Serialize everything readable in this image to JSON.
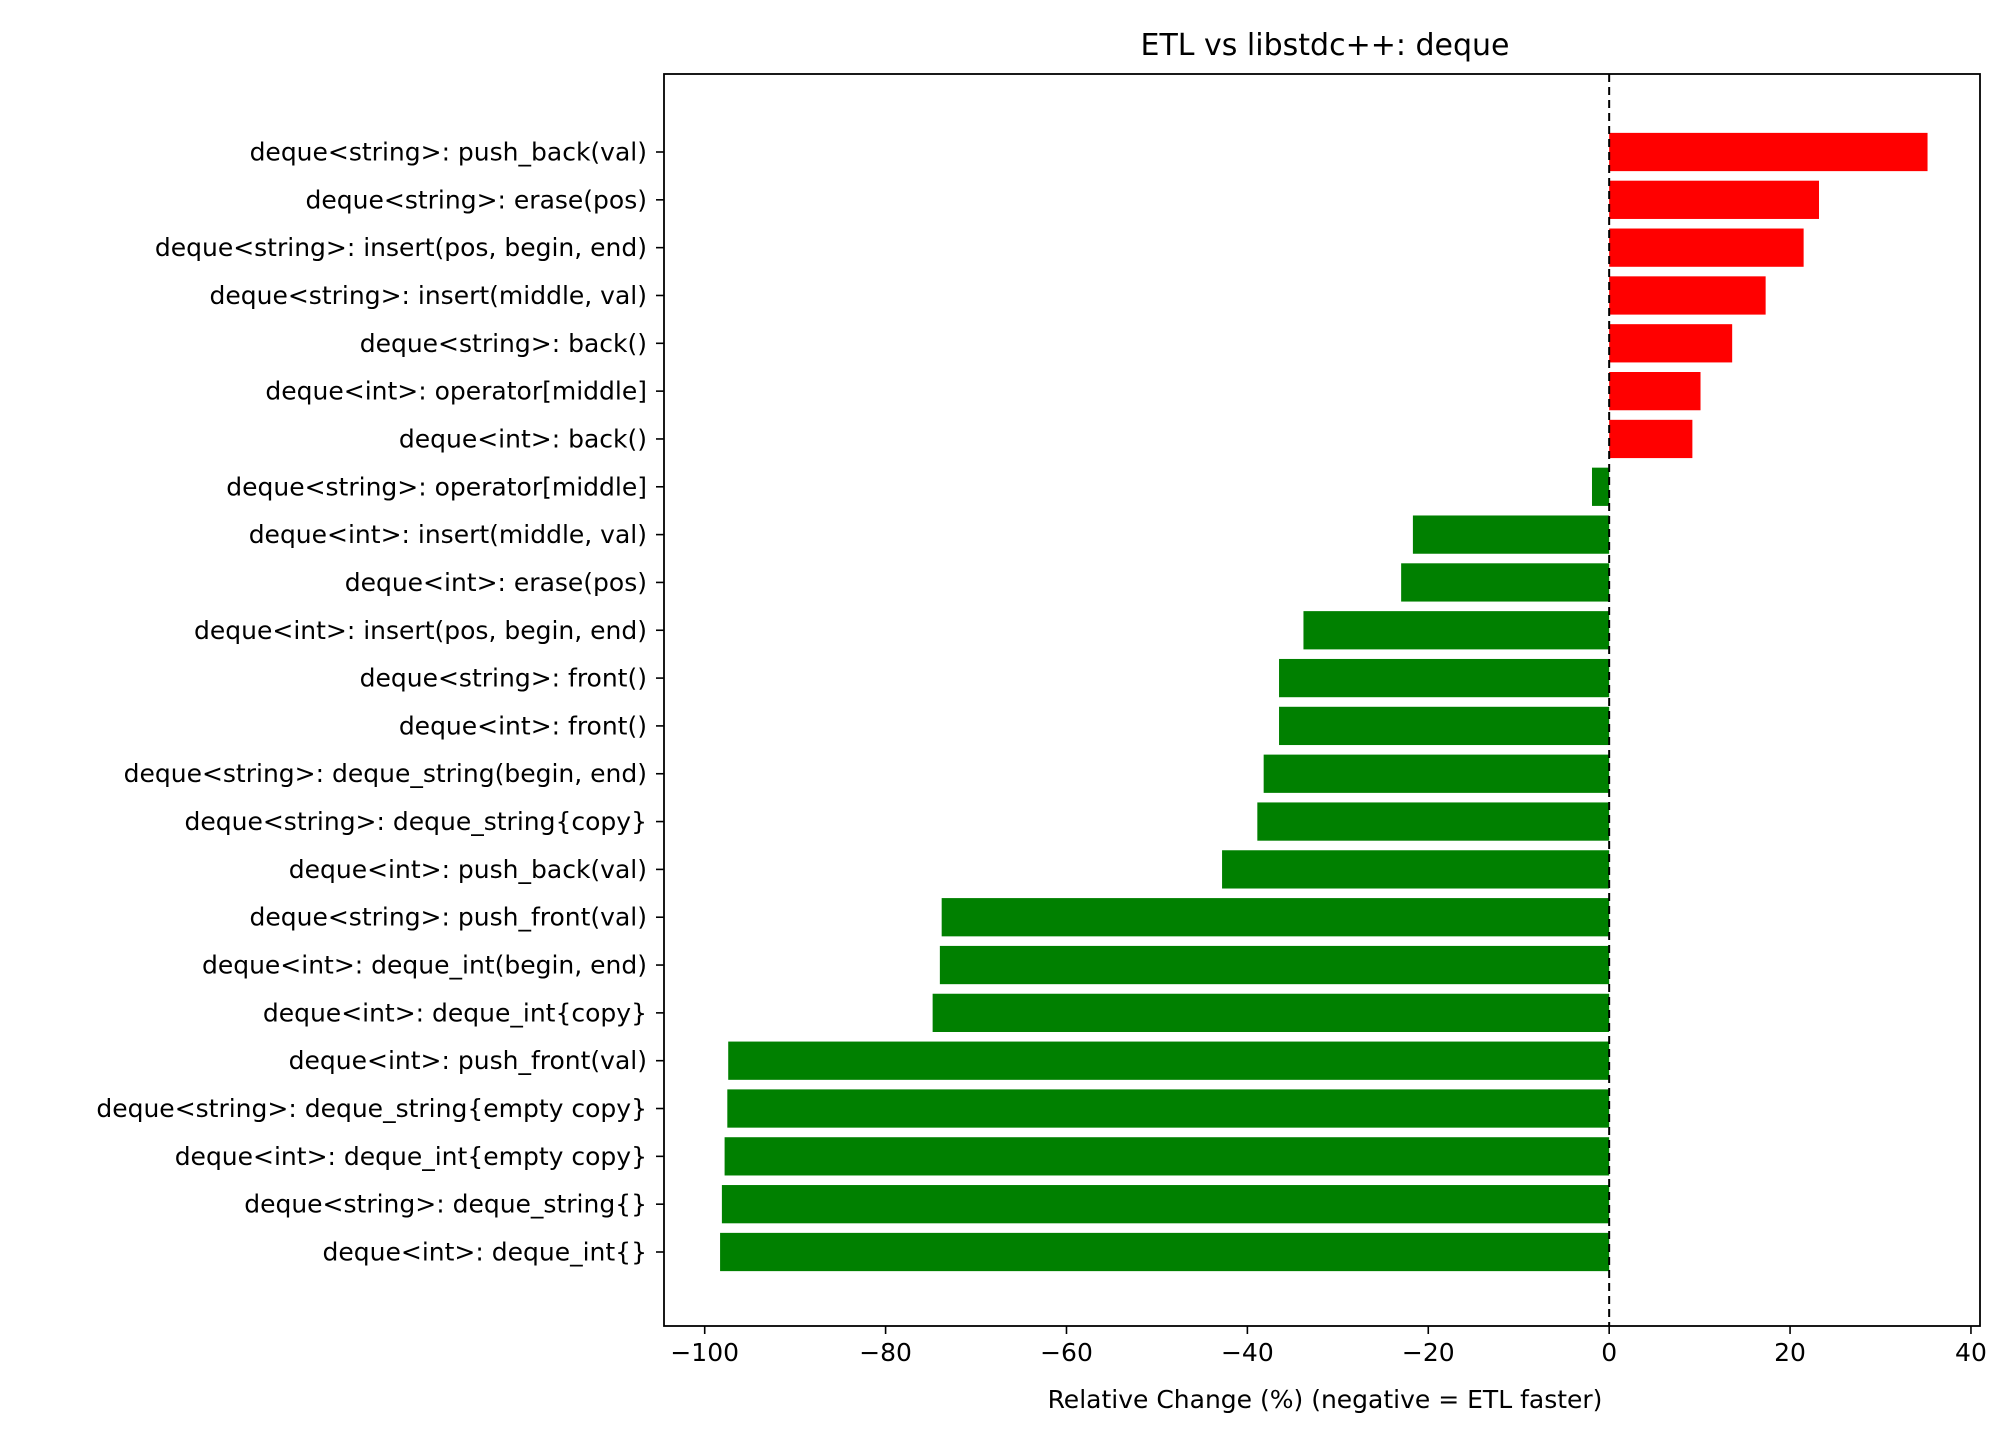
{
  "chart_data": {
    "type": "bar",
    "orientation": "horizontal",
    "title": "ETL vs libstdc++: deque",
    "xlabel": "Relative Change (%)  (negative = ETL faster)",
    "ylabel": "",
    "xlim": [
      -104.5,
      41
    ],
    "xticks": [
      -100,
      -80,
      -60,
      -40,
      -20,
      0,
      20,
      40
    ],
    "xtick_labels": [
      "−100",
      "−80",
      "−60",
      "−40",
      "−20",
      "0",
      "20",
      "40"
    ],
    "reference_line": {
      "x": 0,
      "style": "dashed"
    },
    "colors": {
      "positive": "#ff0000",
      "negative": "#008000"
    },
    "grid": false,
    "categories": [
      "deque<string>: push_back(val)",
      "deque<string>: erase(pos)",
      "deque<string>: insert(pos, begin, end)",
      "deque<string>: insert(middle, val)",
      "deque<string>: back()",
      "deque<int>: operator[middle]",
      "deque<int>: back()",
      "deque<string>: operator[middle]",
      "deque<int>: insert(middle, val)",
      "deque<int>: erase(pos)",
      "deque<int>: insert(pos, begin, end)",
      "deque<string>: front()",
      "deque<int>: front()",
      "deque<string>: deque_string(begin, end)",
      "deque<string>: deque_string{copy}",
      "deque<int>: push_back(val)",
      "deque<string>: push_front(val)",
      "deque<int>: deque_int(begin, end)",
      "deque<int>: deque_int{copy}",
      "deque<int>: push_front(val)",
      "deque<string>: deque_string{empty copy}",
      "deque<int>: deque_int{empty copy}",
      "deque<string>: deque_string{}",
      "deque<int>: deque_int{}"
    ],
    "values": [
      35.2,
      23.2,
      21.5,
      17.3,
      13.6,
      10.1,
      9.2,
      -1.9,
      -21.7,
      -23.0,
      -33.8,
      -36.5,
      -36.5,
      -38.2,
      -38.9,
      -42.8,
      -73.8,
      -74.0,
      -74.8,
      -97.4,
      -97.5,
      -97.8,
      -98.1,
      -98.3
    ]
  }
}
